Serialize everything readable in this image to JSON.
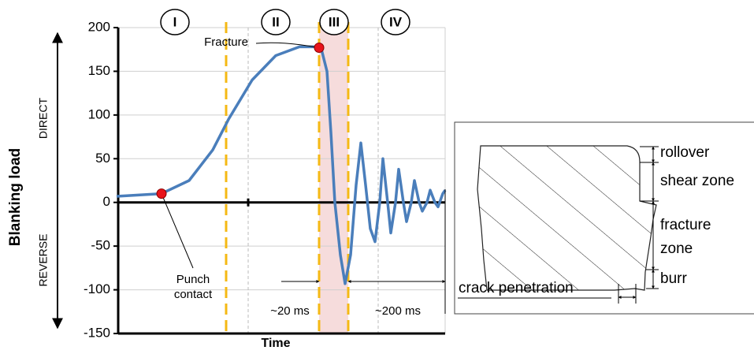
{
  "chart_data": {
    "type": "line",
    "y_label": "Blanking load",
    "x_label": "Time",
    "direct_label": "DIRECT",
    "reverse_label": "REVERSE",
    "phases": [
      "I",
      "II",
      "III",
      "IV"
    ],
    "annotations": {
      "fracture": "Fracture",
      "punch_contact": [
        "Punch",
        "contact"
      ],
      "short_time": "~20 ms",
      "long_time": "~200 ms"
    },
    "xlim": [
      0,
      420
    ],
    "ylim": [
      -150,
      200
    ],
    "yticks": [
      200,
      150,
      100,
      50,
      0,
      -50,
      -100,
      -150
    ],
    "grid": true,
    "series": [
      {
        "color": "#4a7ebb",
        "x": [
          0,
          57,
          92,
          122,
          142,
          172,
          202,
          232,
          252,
          257,
          260,
          267,
          272,
          277,
          284,
          290,
          297,
          304,
          310,
          316,
          322,
          328,
          334,
          338,
          344,
          348,
          354,
          358,
          364,
          368,
          374,
          378,
          384,
          388,
          394,
          398,
          404,
          408,
          414,
          417
        ],
        "values": [
          7,
          10,
          25,
          60,
          95,
          140,
          168,
          178,
          178,
          177,
          175,
          150,
          80,
          0,
          -60,
          -93,
          -60,
          20,
          68,
          20,
          -30,
          -45,
          0,
          50,
          0,
          -35,
          0,
          38,
          0,
          -22,
          0,
          25,
          0,
          -10,
          0,
          14,
          0,
          -5,
          10,
          14
        ]
      }
    ],
    "markers": {
      "punch_contact": 1,
      "fracture": 9
    },
    "inset": {
      "rollover": "rollover",
      "shear_zone": "shear zone",
      "fracture_zone": [
        "fracture",
        "zone"
      ],
      "burr": "burr",
      "crack_penetration": "crack penetration"
    }
  }
}
